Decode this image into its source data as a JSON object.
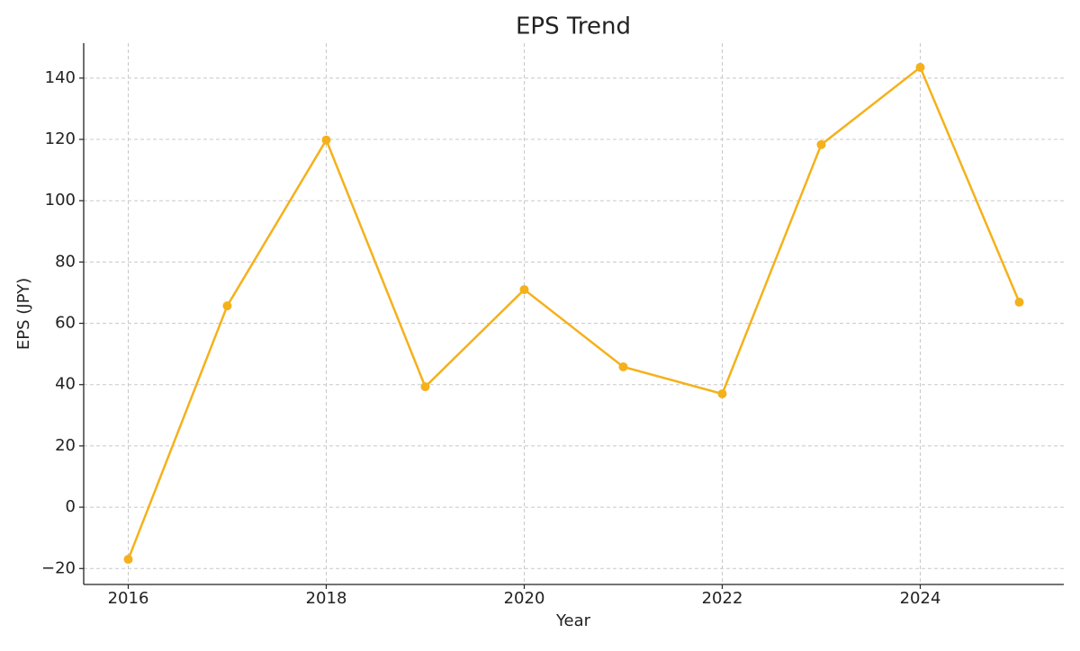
{
  "chart_data": {
    "type": "line",
    "title": "EPS Trend",
    "x_label": "Year",
    "y_label": "EPS (JPY)",
    "x": [
      2016,
      2017,
      2018,
      2019,
      2020,
      2021,
      2022,
      2023,
      2024,
      2025
    ],
    "values": [
      -17.0,
      65.7,
      119.8,
      39.3,
      71.0,
      45.8,
      37.0,
      118.3,
      143.5,
      66.9
    ],
    "color": "#f5b11b",
    "xlim": [
      2015.55,
      2025.45
    ],
    "xticks": [
      2016,
      2018,
      2020,
      2022,
      2024
    ],
    "ylim": [
      -25.2,
      151.4
    ],
    "yticks": [
      {
        "value": -20,
        "label": "−20"
      },
      0,
      20,
      40,
      60,
      80,
      100,
      120,
      140
    ],
    "grid": true
  }
}
